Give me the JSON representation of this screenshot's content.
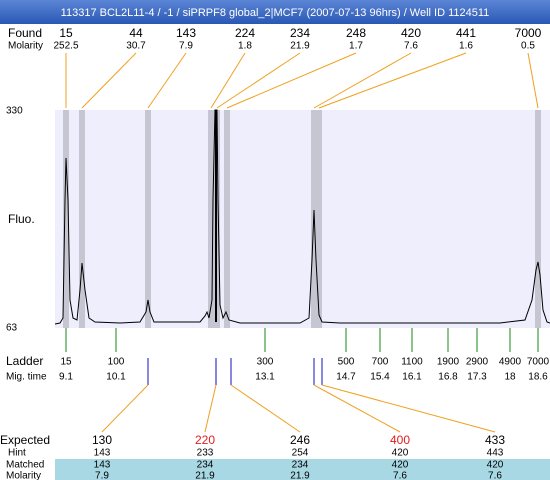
{
  "header": {
    "title": "113317  BCL2L11-4 / -1 / siPRPF8 global_2|MCF7 (2007-07-13 96hrs) / Well ID 1124511"
  },
  "found": {
    "label": "Found",
    "sublabel": "Molarity",
    "sizes": [
      15,
      44,
      143,
      224,
      234,
      248,
      420,
      441,
      7000
    ],
    "molarity": [
      252.5,
      30.7,
      7.9,
      1.8,
      21.9,
      1.7,
      7.6,
      1.6,
      0.5
    ]
  },
  "plot": {
    "y_label": "Fluo.",
    "y_top": 330,
    "y_bottom": 63
  },
  "ladder": {
    "label": "Ladder",
    "sublabel": "Mig. time",
    "sizes": [
      15,
      100,
      300,
      500,
      700,
      1100,
      1900,
      2900,
      4900,
      7000
    ],
    "times": [
      9.1,
      10.1,
      13.1,
      14.7,
      15.4,
      16.1,
      16.8,
      17.3,
      18,
      18.6
    ]
  },
  "table": {
    "row_labels": [
      "Expected",
      "Hint",
      "Matched",
      "Molarity"
    ],
    "expected": [
      130,
      220,
      246,
      400,
      433
    ],
    "expected_colors": [
      "#000000",
      "#e02020",
      "#000000",
      "#e02020",
      "#000000"
    ],
    "hint": [
      143,
      233,
      254,
      420,
      443
    ],
    "matched": [
      143,
      234,
      234,
      420,
      420
    ],
    "molarity": [
      7.9,
      21.9,
      21.9,
      7.6,
      7.6
    ]
  }
}
